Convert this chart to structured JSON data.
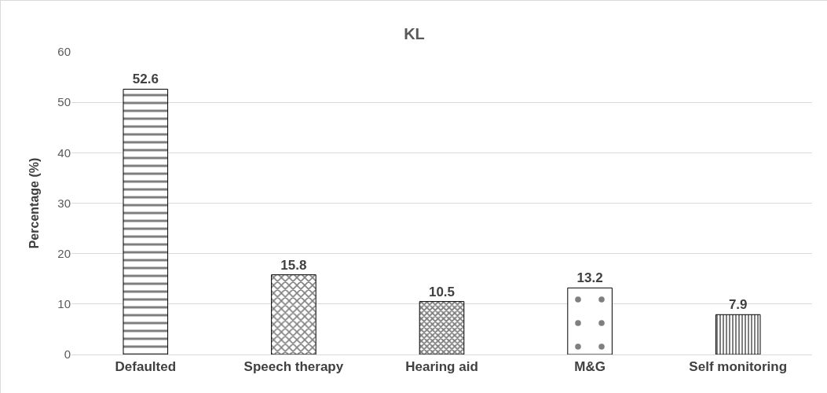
{
  "chart_data": {
    "type": "bar",
    "title": "KL",
    "ylabel": "Percentage (%)",
    "categories": [
      "Defaulted",
      "Speech therapy",
      "Hearing aid",
      "M&G",
      "Self monitoring"
    ],
    "values": [
      52.6,
      15.8,
      10.5,
      13.2,
      7.9
    ],
    "color": "#000000",
    "ylim": [
      0,
      60
    ],
    "yticks": [
      0,
      10,
      20,
      30,
      40,
      50,
      60
    ],
    "grid": "y",
    "data_labels": true
  }
}
